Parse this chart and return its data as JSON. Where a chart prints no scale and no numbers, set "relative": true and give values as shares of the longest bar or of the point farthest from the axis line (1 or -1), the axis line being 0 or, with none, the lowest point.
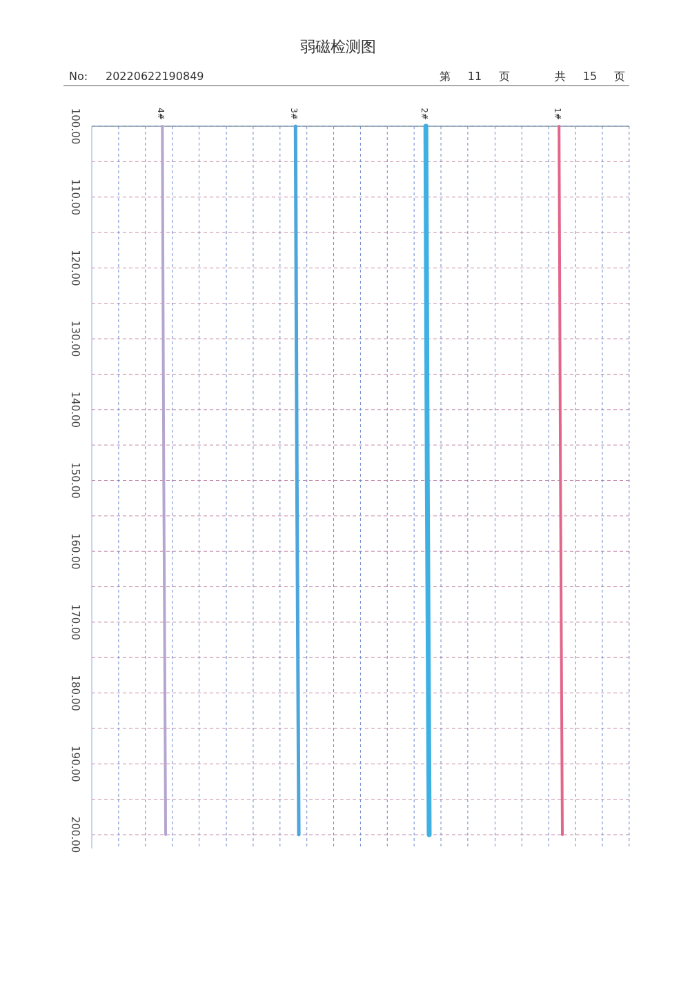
{
  "chart_data": {
    "type": "line",
    "title": "弱磁检测图",
    "orientation": "horizontal",
    "relative": true,
    "annotations": [
      "No:",
      "20220622190849",
      "第 11 页",
      "共 15 页"
    ],
    "x": [
      100,
      150,
      200
    ],
    "series": [
      {
        "name": "4#",
        "color": "#b4a6cf",
        "values": [
          0.15,
          0.153,
          0.157
        ]
      },
      {
        "name": "3#",
        "color": "#4ca6dc",
        "values": [
          0.433,
          0.436,
          0.44
        ]
      },
      {
        "name": "2#",
        "color": "#3eb0e2",
        "values": [
          0.71,
          0.713,
          0.717
        ]
      },
      {
        "name": "1#",
        "color": "#e2668a",
        "values": [
          0.993,
          0.996,
          1
        ]
      }
    ],
    "ylim": [
      200,
      100
    ],
    "yticks": [
      {
        "value": 100,
        "label": "100.00"
      },
      {
        "value": 105,
        "label": null
      },
      {
        "value": 110,
        "label": "110.00"
      },
      {
        "value": 115,
        "label": null
      },
      {
        "value": 120,
        "label": "120.00"
      },
      {
        "value": 125,
        "label": null
      },
      {
        "value": 130,
        "label": "130.00"
      },
      {
        "value": 135,
        "label": null
      },
      {
        "value": 140,
        "label": "140.00"
      },
      {
        "value": 145,
        "label": null
      },
      {
        "value": 150,
        "label": "150.00"
      },
      {
        "value": 155,
        "label": null
      },
      {
        "value": 160,
        "label": "160.00"
      },
      {
        "value": 165,
        "label": null
      },
      {
        "value": 170,
        "label": "170.00"
      },
      {
        "value": 175,
        "label": null
      },
      {
        "value": 180,
        "label": "180.00"
      },
      {
        "value": 185,
        "label": null
      },
      {
        "value": 190,
        "label": "190.00"
      },
      {
        "value": 195,
        "label": null
      },
      {
        "value": 200,
        "label": "200.00"
      }
    ],
    "tick_labels": "y",
    "grid": "y",
    "legend": false,
    "ref_lines": [
      {
        "axis": "x",
        "value": 0.057,
        "color": "#6a86c8",
        "line_style": "dashed"
      },
      {
        "axis": "x",
        "value": 0.114,
        "color": "#6a86c8",
        "line_style": "dashed"
      },
      {
        "axis": "x",
        "value": 0.171,
        "color": "#6a86c8",
        "line_style": "dashed"
      },
      {
        "axis": "x",
        "value": 0.228,
        "color": "#6a86c8",
        "line_style": "dashed"
      },
      {
        "axis": "x",
        "value": 0.286,
        "color": "#6a86c8",
        "line_style": "dashed"
      },
      {
        "axis": "x",
        "value": 0.343,
        "color": "#6a86c8",
        "line_style": "dashed"
      },
      {
        "axis": "x",
        "value": 0.4,
        "color": "#6a86c8",
        "line_style": "dashed"
      },
      {
        "axis": "x",
        "value": 0.457,
        "color": "#6a86c8",
        "line_style": "dashed"
      },
      {
        "axis": "x",
        "value": 0.514,
        "color": "#6a86c8",
        "line_style": "dashed"
      },
      {
        "axis": "x",
        "value": 0.571,
        "color": "#6a86c8",
        "line_style": "dashed"
      },
      {
        "axis": "x",
        "value": 0.628,
        "color": "#6a86c8",
        "line_style": "dashed"
      },
      {
        "axis": "x",
        "value": 0.685,
        "color": "#6a86c8",
        "line_style": "dashed"
      },
      {
        "axis": "x",
        "value": 0.742,
        "color": "#6a86c8",
        "line_style": "dashed"
      },
      {
        "axis": "x",
        "value": 0.799,
        "color": "#6a86c8",
        "line_style": "dashed"
      },
      {
        "axis": "x",
        "value": 0.857,
        "color": "#6a86c8",
        "line_style": "dashed"
      },
      {
        "axis": "x",
        "value": 0.914,
        "color": "#6a86c8",
        "line_style": "dashed"
      },
      {
        "axis": "x",
        "value": 0.971,
        "color": "#6a86c8",
        "line_style": "dashed"
      },
      {
        "axis": "x",
        "value": 1.028,
        "color": "#6a86c8",
        "line_style": "dashed"
      },
      {
        "axis": "x",
        "value": 1.085,
        "color": "#6a86c8",
        "line_style": "dashed"
      },
      {
        "axis": "x",
        "value": 1.142,
        "color": "#6a86c8",
        "line_style": "dashed"
      }
    ]
  }
}
